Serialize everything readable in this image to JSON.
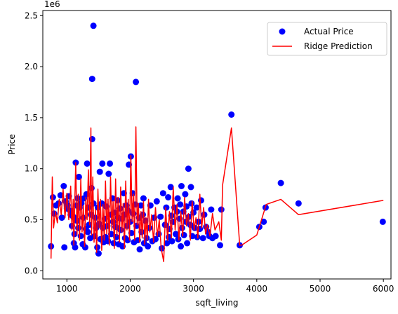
{
  "chart_data": {
    "type": "scatter",
    "title": "",
    "xlabel": "sqft_living",
    "ylabel": "Price",
    "y_scale_label": "1e6",
    "xlim": [
      620,
      6120
    ],
    "ylim": [
      -0.08,
      2.55
    ],
    "xticks": [
      1000,
      2000,
      3000,
      4000,
      5000,
      6000
    ],
    "yticks": [
      0.0,
      0.5,
      1.0,
      1.5,
      2.0,
      2.5
    ],
    "xtick_labels": [
      "1000",
      "2000",
      "3000",
      "4000",
      "5000",
      "6000"
    ],
    "ytick_labels": [
      "0.0",
      "0.5",
      "1.0",
      "1.5",
      "2.0",
      "2.5"
    ],
    "grid": false,
    "legend_position": "top-right",
    "legend": [
      "Actual Price",
      "Ridge Prediction"
    ],
    "colors": {
      "actual": "#0000ff",
      "prediction": "#ff0000"
    },
    "series": [
      {
        "name": "Actual Price",
        "kind": "scatter",
        "color": "#0000ff",
        "points": [
          [
            750,
            0.24
          ],
          [
            780,
            0.72
          ],
          [
            800,
            0.56
          ],
          [
            830,
            0.64
          ],
          [
            870,
            0.66
          ],
          [
            900,
            0.74
          ],
          [
            920,
            0.52
          ],
          [
            950,
            0.83
          ],
          [
            960,
            0.23
          ],
          [
            980,
            0.68
          ],
          [
            1000,
            0.61
          ],
          [
            1010,
            0.64
          ],
          [
            1030,
            0.73
          ],
          [
            1050,
            0.59
          ],
          [
            1060,
            0.55
          ],
          [
            1080,
            0.44
          ],
          [
            1100,
            0.53
          ],
          [
            1110,
            0.27
          ],
          [
            1120,
            0.36
          ],
          [
            1130,
            0.23
          ],
          [
            1140,
            1.06
          ],
          [
            1150,
            0.64
          ],
          [
            1160,
            0.49
          ],
          [
            1170,
            0.71
          ],
          [
            1180,
            0.42
          ],
          [
            1190,
            0.92
          ],
          [
            1200,
            0.62
          ],
          [
            1220,
            0.34
          ],
          [
            1230,
            0.66
          ],
          [
            1250,
            0.26
          ],
          [
            1260,
            0.52
          ],
          [
            1270,
            0.71
          ],
          [
            1290,
            0.23
          ],
          [
            1300,
            0.41
          ],
          [
            1310,
            0.75
          ],
          [
            1320,
            1.05
          ],
          [
            1330,
            0.38
          ],
          [
            1340,
            0.62
          ],
          [
            1350,
            0.45
          ],
          [
            1370,
            0.32
          ],
          [
            1380,
            0.55
          ],
          [
            1390,
            0.81
          ],
          [
            1400,
            1.88
          ],
          [
            1400,
            1.29
          ],
          [
            1420,
            2.4
          ],
          [
            1420,
            0.66
          ],
          [
            1440,
            0.34
          ],
          [
            1450,
            0.52
          ],
          [
            1460,
            0.42
          ],
          [
            1480,
            0.23
          ],
          [
            1490,
            0.62
          ],
          [
            1500,
            0.17
          ],
          [
            1510,
            0.46
          ],
          [
            1520,
            0.97
          ],
          [
            1530,
            0.31
          ],
          [
            1550,
            0.66
          ],
          [
            1560,
            1.05
          ],
          [
            1570,
            0.42
          ],
          [
            1580,
            0.28
          ],
          [
            1600,
            0.51
          ],
          [
            1610,
            0.33
          ],
          [
            1620,
            0.63
          ],
          [
            1640,
            0.44
          ],
          [
            1650,
            0.29
          ],
          [
            1660,
            0.95
          ],
          [
            1680,
            1.05
          ],
          [
            1690,
            0.55
          ],
          [
            1700,
            0.36
          ],
          [
            1720,
            0.71
          ],
          [
            1730,
            0.48
          ],
          [
            1740,
            0.27
          ],
          [
            1760,
            0.57
          ],
          [
            1770,
            0.43
          ],
          [
            1780,
            0.33
          ],
          [
            1800,
            0.69
          ],
          [
            1810,
            0.52
          ],
          [
            1820,
            0.26
          ],
          [
            1840,
            0.61
          ],
          [
            1850,
            0.4
          ],
          [
            1870,
            0.51
          ],
          [
            1880,
            0.24
          ],
          [
            1900,
            0.76
          ],
          [
            1910,
            0.55
          ],
          [
            1920,
            0.32
          ],
          [
            1940,
            0.64
          ],
          [
            1950,
            0.44
          ],
          [
            1960,
            0.3
          ],
          [
            1970,
            0.59
          ],
          [
            1980,
            1.04
          ],
          [
            2000,
            0.48
          ],
          [
            2010,
            1.12
          ],
          [
            2020,
            0.37
          ],
          [
            2040,
            0.76
          ],
          [
            2050,
            0.56
          ],
          [
            2060,
            0.28
          ],
          [
            2080,
            0.65
          ],
          [
            2090,
            1.85
          ],
          [
            2100,
            0.44
          ],
          [
            2120,
            0.3
          ],
          [
            2140,
            0.52
          ],
          [
            2150,
            0.21
          ],
          [
            2170,
            0.64
          ],
          [
            2180,
            0.38
          ],
          [
            2200,
            0.55
          ],
          [
            2210,
            0.71
          ],
          [
            2220,
            0.27
          ],
          [
            2240,
            0.49
          ],
          [
            2260,
            0.32
          ],
          [
            2280,
            0.24
          ],
          [
            2300,
            0.42
          ],
          [
            2320,
            0.64
          ],
          [
            2350,
            0.29
          ],
          [
            2380,
            0.52
          ],
          [
            2400,
            0.31
          ],
          [
            2420,
            0.68
          ],
          [
            2450,
            0.36
          ],
          [
            2480,
            0.53
          ],
          [
            2500,
            0.22
          ],
          [
            2520,
            0.76
          ],
          [
            2550,
            0.45
          ],
          [
            2570,
            0.62
          ],
          [
            2580,
            0.27
          ],
          [
            2600,
            0.72
          ],
          [
            2610,
            0.33
          ],
          [
            2620,
            0.41
          ],
          [
            2640,
            0.82
          ],
          [
            2650,
            0.54
          ],
          [
            2660,
            0.29
          ],
          [
            2680,
            0.48
          ],
          [
            2700,
            0.62
          ],
          [
            2720,
            0.36
          ],
          [
            2740,
            0.58
          ],
          [
            2750,
            0.71
          ],
          [
            2760,
            0.31
          ],
          [
            2780,
            0.51
          ],
          [
            2790,
            0.65
          ],
          [
            2800,
            0.24
          ],
          [
            2810,
            0.83
          ],
          [
            2820,
            0.42
          ],
          [
            2840,
            0.58
          ],
          [
            2850,
            0.35
          ],
          [
            2870,
            0.75
          ],
          [
            2880,
            0.48
          ],
          [
            2890,
            0.63
          ],
          [
            2900,
            0.27
          ],
          [
            2920,
            1.0
          ],
          [
            2930,
            0.53
          ],
          [
            2950,
            0.45
          ],
          [
            2960,
            0.82
          ],
          [
            2970,
            0.66
          ],
          [
            2980,
            0.34
          ],
          [
            3000,
            0.57
          ],
          [
            3020,
            0.42
          ],
          [
            3050,
            0.62
          ],
          [
            3060,
            0.33
          ],
          [
            3080,
            0.48
          ],
          [
            3100,
            0.41
          ],
          [
            3120,
            0.69
          ],
          [
            3150,
            0.32
          ],
          [
            3170,
            0.55
          ],
          [
            3200,
            0.43
          ],
          [
            3230,
            0.38
          ],
          [
            3250,
            0.34
          ],
          [
            3280,
            0.6
          ],
          [
            3300,
            0.32
          ],
          [
            3350,
            0.34
          ],
          [
            3420,
            0.25
          ],
          [
            3440,
            0.6
          ],
          [
            3600,
            1.53
          ],
          [
            3730,
            0.25
          ],
          [
            4040,
            0.43
          ],
          [
            4110,
            0.48
          ],
          [
            4140,
            0.62
          ],
          [
            4380,
            0.86
          ],
          [
            4660,
            0.66
          ],
          [
            5990,
            0.48
          ]
        ]
      },
      {
        "name": "Ridge Prediction",
        "kind": "line",
        "color": "#ff0000",
        "points": [
          [
            750,
            0.12
          ],
          [
            770,
            0.92
          ],
          [
            790,
            0.42
          ],
          [
            820,
            0.58
          ],
          [
            850,
            0.47
          ],
          [
            880,
            0.7
          ],
          [
            910,
            0.55
          ],
          [
            940,
            0.8
          ],
          [
            970,
            0.52
          ],
          [
            1000,
            0.76
          ],
          [
            1030,
            0.5
          ],
          [
            1060,
            0.83
          ],
          [
            1080,
            0.4
          ],
          [
            1100,
            0.7
          ],
          [
            1110,
            0.25
          ],
          [
            1120,
            0.55
          ],
          [
            1140,
            1.06
          ],
          [
            1160,
            0.35
          ],
          [
            1180,
            0.75
          ],
          [
            1200,
            0.3
          ],
          [
            1220,
            0.9
          ],
          [
            1240,
            0.38
          ],
          [
            1260,
            0.64
          ],
          [
            1280,
            0.24
          ],
          [
            1300,
            0.72
          ],
          [
            1320,
            0.5
          ],
          [
            1340,
            0.99
          ],
          [
            1360,
            0.45
          ],
          [
            1380,
            1.4
          ],
          [
            1390,
            0.35
          ],
          [
            1410,
            0.92
          ],
          [
            1430,
            0.28
          ],
          [
            1450,
            0.6
          ],
          [
            1470,
            0.18
          ],
          [
            1490,
            0.8
          ],
          [
            1510,
            0.42
          ],
          [
            1530,
            0.7
          ],
          [
            1550,
            0.2
          ],
          [
            1570,
            0.65
          ],
          [
            1590,
            0.3
          ],
          [
            1610,
            0.88
          ],
          [
            1630,
            0.36
          ],
          [
            1650,
            0.7
          ],
          [
            1670,
            0.25
          ],
          [
            1690,
            0.92
          ],
          [
            1710,
            0.4
          ],
          [
            1730,
            0.68
          ],
          [
            1750,
            0.22
          ],
          [
            1770,
            0.9
          ],
          [
            1790,
            0.34
          ],
          [
            1810,
            0.72
          ],
          [
            1830,
            0.28
          ],
          [
            1850,
            0.82
          ],
          [
            1870,
            0.38
          ],
          [
            1890,
            0.66
          ],
          [
            1910,
            0.22
          ],
          [
            1930,
            0.88
          ],
          [
            1950,
            0.4
          ],
          [
            1970,
            0.7
          ],
          [
            1990,
            0.3
          ],
          [
            2010,
            1.13
          ],
          [
            2030,
            0.48
          ],
          [
            2050,
            0.75
          ],
          [
            2070,
            0.3
          ],
          [
            2090,
            1.41
          ],
          [
            2110,
            0.45
          ],
          [
            2130,
            0.66
          ],
          [
            2150,
            0.28
          ],
          [
            2170,
            0.58
          ],
          [
            2190,
            0.32
          ],
          [
            2210,
            0.68
          ],
          [
            2230,
            0.26
          ],
          [
            2250,
            0.52
          ],
          [
            2270,
            0.3
          ],
          [
            2290,
            0.7
          ],
          [
            2310,
            0.38
          ],
          [
            2340,
            0.55
          ],
          [
            2370,
            0.28
          ],
          [
            2400,
            0.62
          ],
          [
            2430,
            0.34
          ],
          [
            2460,
            0.5
          ],
          [
            2490,
            0.22
          ],
          [
            2530,
            0.09
          ],
          [
            2560,
            0.62
          ],
          [
            2590,
            0.3
          ],
          [
            2620,
            0.58
          ],
          [
            2650,
            0.32
          ],
          [
            2680,
            0.82
          ],
          [
            2710,
            0.4
          ],
          [
            2740,
            0.65
          ],
          [
            2770,
            0.3
          ],
          [
            2800,
            0.58
          ],
          [
            2830,
            0.34
          ],
          [
            2860,
            0.72
          ],
          [
            2890,
            0.44
          ],
          [
            2920,
            0.56
          ],
          [
            2950,
            0.3
          ],
          [
            2980,
            0.68
          ],
          [
            3010,
            0.4
          ],
          [
            3040,
            0.52
          ],
          [
            3070,
            0.32
          ],
          [
            3100,
            0.75
          ],
          [
            3130,
            0.42
          ],
          [
            3160,
            0.62
          ],
          [
            3190,
            0.36
          ],
          [
            3220,
            0.45
          ],
          [
            3260,
            0.34
          ],
          [
            3300,
            0.56
          ],
          [
            3340,
            0.4
          ],
          [
            3400,
            0.48
          ],
          [
            3440,
            0.3
          ],
          [
            3460,
            0.84
          ],
          [
            3600,
            1.4
          ],
          [
            3730,
            0.25
          ],
          [
            3760,
            0.25
          ],
          [
            4000,
            0.35
          ],
          [
            4150,
            0.65
          ],
          [
            4380,
            0.7
          ],
          [
            4660,
            0.55
          ],
          [
            6000,
            0.69
          ]
        ]
      }
    ]
  }
}
